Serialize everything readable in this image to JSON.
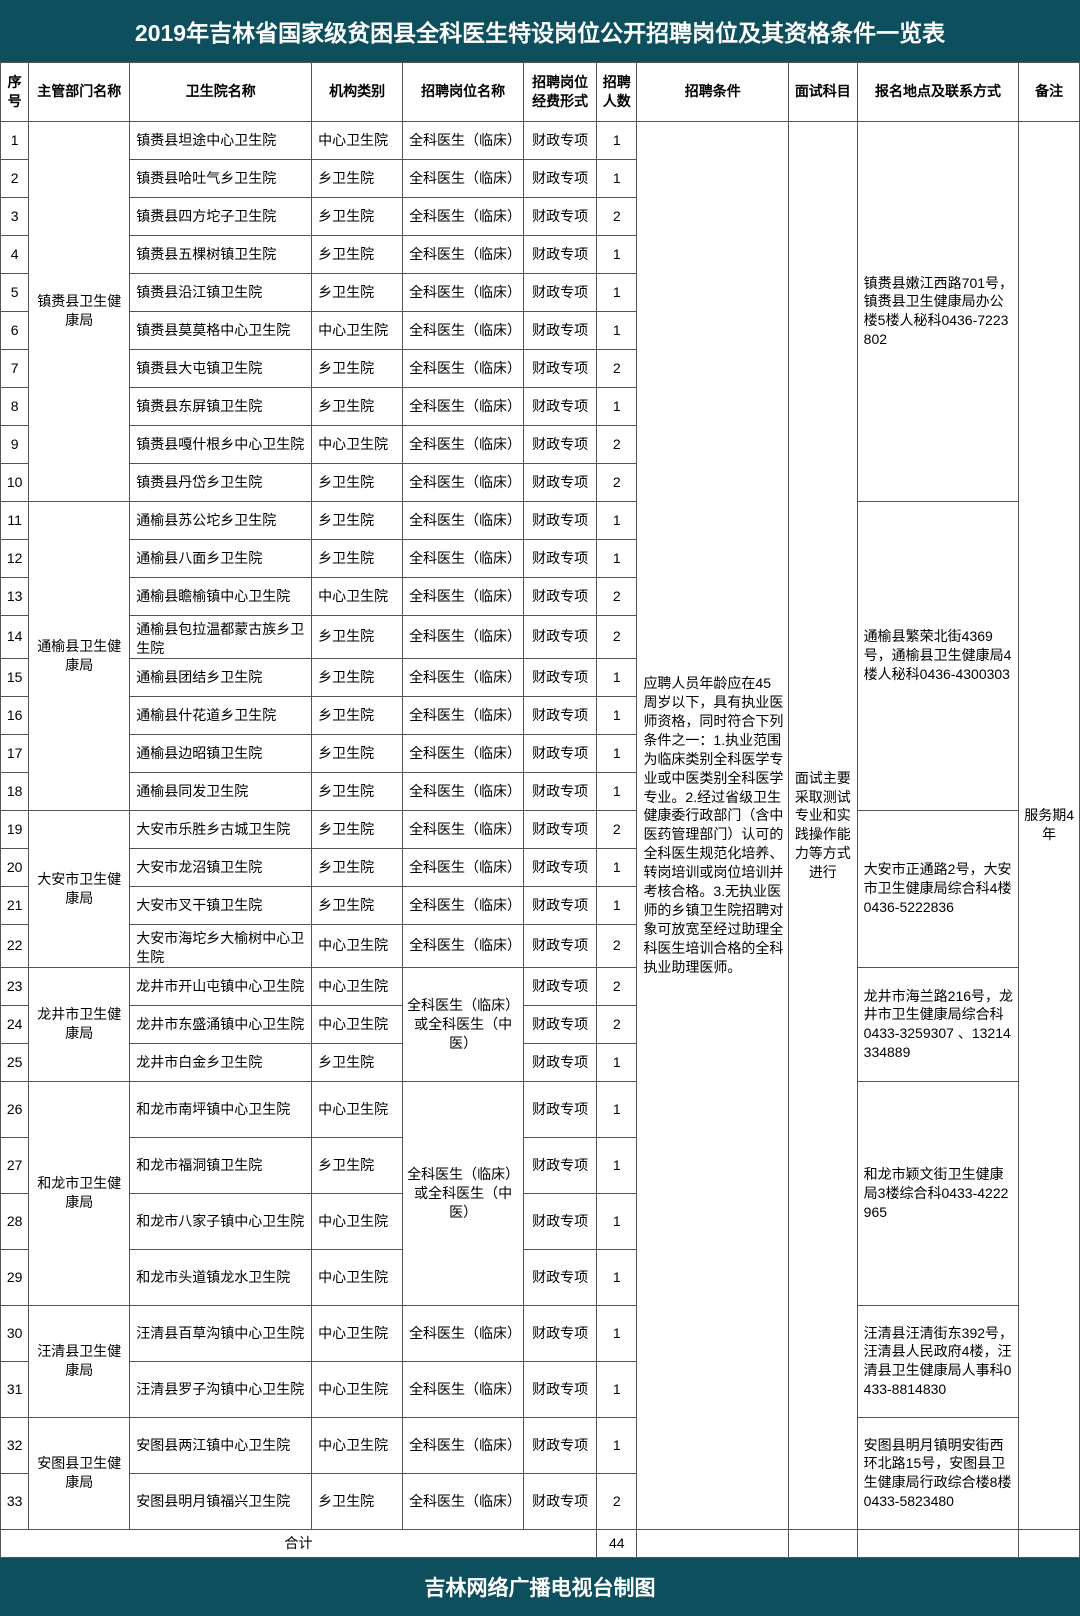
{
  "colors": {
    "header_bg": "#0d4f5c",
    "header_fg": "#ffffff",
    "border": "#555555",
    "page_bg": "#ffffff"
  },
  "title": "2019年吉林省国家级贫困县全科医生特设岗位公开招聘岗位及其资格条件一览表",
  "footer": "吉林网络广播电视台制图",
  "columns": [
    "序号",
    "主管部门名称",
    "卫生院名称",
    "机构类别",
    "招聘岗位名称",
    "招聘岗位经费形式",
    "招聘人数",
    "招聘条件",
    "面试科目",
    "报名地点及联系方式",
    "备注"
  ],
  "total_label": "合计",
  "total_value": 44,
  "shared": {
    "condition": "应聘人员年龄应在45周岁以下，具有执业医师资格，同时符合下列条件之一：1.执业范围为临床类别全科医学专业或中医类别全科医学专业。2.经过省级卫生健康委行政部门（含中医药管理部门）认可的全科医生规范化培养、转岗培训或岗位培训并考核合格。3.无执业医师的乡镇卫生院招聘对象可放宽至经过助理全科医生培训合格的全科执业助理医师。",
    "interview": "面试主要采取测试专业和实践操作能力等方式进行",
    "note": "服务期4年"
  },
  "position_labels": {
    "clinical": "全科医生（临床）",
    "clinical_or_tcm": "全科医生（临床）或全科医生（中医）"
  },
  "funding": "财政专项",
  "groups": [
    {
      "dept": "镇赉县卫生健康局",
      "address": "镇赉县嫩江西路701号，镇赉县卫生健康局办公楼5楼人秘科0436-7223802",
      "rows": [
        {
          "seq": 1,
          "hospital": "镇赉县坦途中心卫生院",
          "type": "中心卫生院",
          "num": 1
        },
        {
          "seq": 2,
          "hospital": "镇赉县哈吐气乡卫生院",
          "type": "乡卫生院",
          "num": 1
        },
        {
          "seq": 3,
          "hospital": "镇赉县四方坨子卫生院",
          "type": "乡卫生院",
          "num": 2
        },
        {
          "seq": 4,
          "hospital": "镇赉县五棵树镇卫生院",
          "type": "乡卫生院",
          "num": 1
        },
        {
          "seq": 5,
          "hospital": "镇赉县沿江镇卫生院",
          "type": "乡卫生院",
          "num": 1
        },
        {
          "seq": 6,
          "hospital": "镇赉县莫莫格中心卫生院",
          "type": "中心卫生院",
          "num": 1
        },
        {
          "seq": 7,
          "hospital": "镇赉县大屯镇卫生院",
          "type": "乡卫生院",
          "num": 2
        },
        {
          "seq": 8,
          "hospital": "镇赉县东屏镇卫生院",
          "type": "乡卫生院",
          "num": 1
        },
        {
          "seq": 9,
          "hospital": "镇赉县嘎什根乡中心卫生院",
          "type": "中心卫生院",
          "num": 2
        },
        {
          "seq": 10,
          "hospital": "镇赉县丹岱乡卫生院",
          "type": "乡卫生院",
          "num": 2
        }
      ]
    },
    {
      "dept": "通榆县卫生健康局",
      "address": "通榆县繁荣北街4369号，通榆县卫生健康局4楼人秘科0436-4300303",
      "rows": [
        {
          "seq": 11,
          "hospital": "通榆县苏公坨乡卫生院",
          "type": "乡卫生院",
          "num": 1
        },
        {
          "seq": 12,
          "hospital": "通榆县八面乡卫生院",
          "type": "乡卫生院",
          "num": 1
        },
        {
          "seq": 13,
          "hospital": "通榆县瞻榆镇中心卫生院",
          "type": "中心卫生院",
          "num": 2
        },
        {
          "seq": 14,
          "hospital": "通榆县包拉温都蒙古族乡卫生院",
          "type": "乡卫生院",
          "num": 2
        },
        {
          "seq": 15,
          "hospital": "通榆县团结乡卫生院",
          "type": "乡卫生院",
          "num": 1
        },
        {
          "seq": 16,
          "hospital": "通榆县什花道乡卫生院",
          "type": "乡卫生院",
          "num": 1
        },
        {
          "seq": 17,
          "hospital": "通榆县边昭镇卫生院",
          "type": "乡卫生院",
          "num": 1
        },
        {
          "seq": 18,
          "hospital": "通榆县同发卫生院",
          "type": "乡卫生院",
          "num": 1
        }
      ]
    },
    {
      "dept": "大安市卫生健康局",
      "address": "大安市正通路2号，大安市卫生健康局综合科4楼0436-5222836",
      "rows": [
        {
          "seq": 19,
          "hospital": "大安市乐胜乡古城卫生院",
          "type": "乡卫生院",
          "num": 2
        },
        {
          "seq": 20,
          "hospital": "大安市龙沼镇卫生院",
          "type": "乡卫生院",
          "num": 1
        },
        {
          "seq": 21,
          "hospital": "大安市叉干镇卫生院",
          "type": "乡卫生院",
          "num": 1
        },
        {
          "seq": 22,
          "hospital": "大安市海坨乡大榆树中心卫生院",
          "type": "中心卫生院",
          "num": 2
        }
      ]
    },
    {
      "dept": "龙井市卫生健康局",
      "address": "龙井市海兰路216号，龙井市卫生健康局综合科 0433-3259307 、13214334889",
      "position_override": "clinical_or_tcm",
      "rows": [
        {
          "seq": 23,
          "hospital": "龙井市开山屯镇中心卫生院",
          "type": "中心卫生院",
          "num": 2
        },
        {
          "seq": 24,
          "hospital": "龙井市东盛涌镇中心卫生院",
          "type": "中心卫生院",
          "num": 2
        },
        {
          "seq": 25,
          "hospital": "龙井市白金乡卫生院",
          "type": "乡卫生院",
          "num": 1
        }
      ]
    },
    {
      "dept": "和龙市卫生健康局",
      "address": "和龙市颖文街卫生健康局3楼综合科0433-4222965",
      "position_override": "clinical_or_tcm",
      "tall": true,
      "rows": [
        {
          "seq": 26,
          "hospital": "和龙市南坪镇中心卫生院",
          "type": "中心卫生院",
          "num": 1
        },
        {
          "seq": 27,
          "hospital": "和龙市福洞镇卫生院",
          "type": "乡卫生院",
          "num": 1
        },
        {
          "seq": 28,
          "hospital": "和龙市八家子镇中心卫生院",
          "type": "中心卫生院",
          "num": 1
        },
        {
          "seq": 29,
          "hospital": "和龙市头道镇龙水卫生院",
          "type": "中心卫生院",
          "num": 1
        }
      ]
    },
    {
      "dept": "汪清县卫生健康局",
      "address": "汪清县汪清街东392号，汪清县人民政府4楼，汪清县卫生健康局人事科0433-8814830",
      "tall": true,
      "rows": [
        {
          "seq": 30,
          "hospital": "汪清县百草沟镇中心卫生院",
          "type": "中心卫生院",
          "num": 1
        },
        {
          "seq": 31,
          "hospital": "汪清县罗子沟镇中心卫生院",
          "type": "中心卫生院",
          "num": 1
        }
      ]
    },
    {
      "dept": "安图县卫生健康局",
      "address": "安图县明月镇明安街西环北路15号，安图县卫生健康局行政综合楼8楼0433-5823480",
      "tall": true,
      "rows": [
        {
          "seq": 32,
          "hospital": "安图县两江镇中心卫生院",
          "type": "中心卫生院",
          "num": 1
        },
        {
          "seq": 33,
          "hospital": "安图县明月镇福兴卫生院",
          "type": "乡卫生院",
          "num": 2
        }
      ]
    }
  ]
}
